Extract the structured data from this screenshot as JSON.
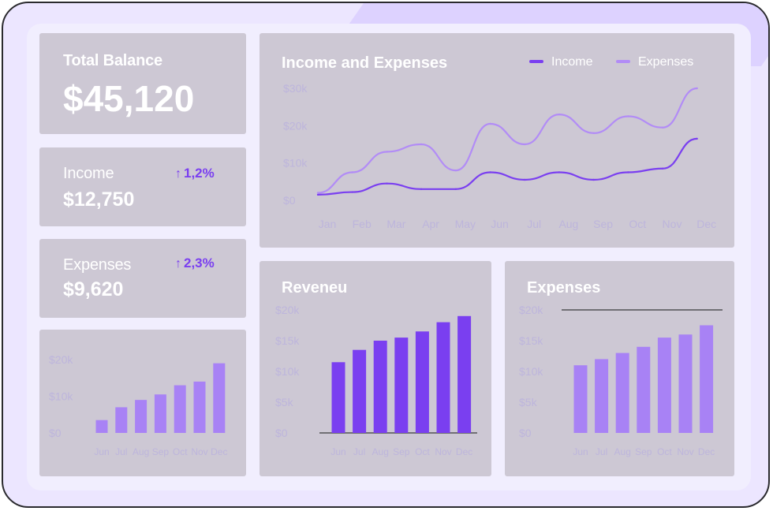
{
  "cards": {
    "total_balance": {
      "label": "Total Balance",
      "value": "$45,120"
    },
    "income": {
      "label": "Income",
      "value": "$12,750",
      "change": "1,2%"
    },
    "expenses": {
      "label": "Expenses",
      "value": "$9,620",
      "change": "2,3%"
    }
  },
  "colors": {
    "income_line": "#7a3ff0",
    "expenses_line": "#b28cf6",
    "bar_dark": "#7a3ff0",
    "bar_light": "#a882f5",
    "card_bg": "#cdc8d4",
    "tick_text": "#bdb5dc"
  },
  "icons": {
    "trend": "arrow-up-icon"
  },
  "chart_data": [
    {
      "type": "line",
      "title": "Income and Expenses",
      "x": [
        "Jan",
        "Feb",
        "Mar",
        "Apr",
        "May",
        "Jun",
        "Jul",
        "Aug",
        "Sep",
        "Oct",
        "Nov",
        "Dec"
      ],
      "yticks": [
        "$30k",
        "$20k",
        "$10k",
        "$0"
      ],
      "ylim": [
        0,
        30000
      ],
      "legend": "top-right",
      "series": [
        {
          "name": "Income",
          "values": [
            1500,
            2200,
            4500,
            3000,
            3000,
            7500,
            5500,
            7500,
            5500,
            7500,
            8500,
            16500
          ]
        },
        {
          "name": "Expenses",
          "values": [
            2000,
            7500,
            13000,
            15000,
            8000,
            20500,
            15000,
            23000,
            18000,
            22500,
            19500,
            30000
          ]
        }
      ]
    },
    {
      "type": "bar",
      "title": "",
      "categories": [
        "Jun",
        "Jul",
        "Aug",
        "Sep",
        "Oct",
        "Nov",
        "Dec"
      ],
      "values": [
        3500,
        7000,
        9000,
        10500,
        13000,
        14000,
        19000
      ],
      "yticks": [
        "$20k",
        "$10k",
        "$0"
      ],
      "ylim": [
        0,
        20000
      ]
    },
    {
      "type": "bar",
      "title": "Reveneu",
      "categories": [
        "Jun",
        "Jul",
        "Aug",
        "Sep",
        "Oct",
        "Nov",
        "Dec"
      ],
      "values": [
        11500,
        13500,
        15000,
        15500,
        16500,
        18000,
        19000
      ],
      "yticks": [
        "$20k",
        "$15k",
        "$10k",
        "$5k",
        "$0"
      ],
      "ylim": [
        0,
        20000
      ]
    },
    {
      "type": "bar",
      "title": "Expenses",
      "categories": [
        "Jun",
        "Jul",
        "Aug",
        "Sep",
        "Oct",
        "Nov",
        "Dec"
      ],
      "values": [
        11000,
        12000,
        13000,
        14000,
        15500,
        16000,
        17500
      ],
      "yticks": [
        "$20k",
        "$15k",
        "$10k",
        "$5k",
        "$0"
      ],
      "ylim": [
        0,
        20000
      ]
    }
  ]
}
